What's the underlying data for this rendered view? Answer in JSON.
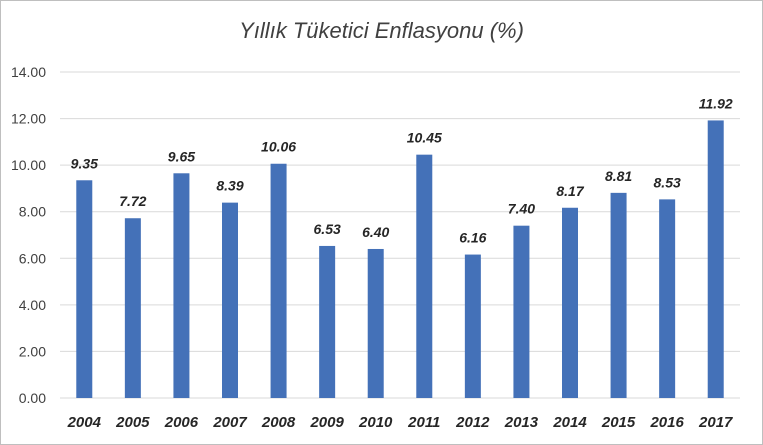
{
  "chart_data": {
    "type": "bar",
    "title": "Yıllık Tüketici Enflasyonu (%)",
    "categories": [
      "2004",
      "2005",
      "2006",
      "2007",
      "2008",
      "2009",
      "2010",
      "2011",
      "2012",
      "2013",
      "2014",
      "2015",
      "2016",
      "2017"
    ],
    "values": [
      9.35,
      7.72,
      9.65,
      8.39,
      10.06,
      6.53,
      6.4,
      10.45,
      6.16,
      7.4,
      8.17,
      8.81,
      8.53,
      11.92
    ],
    "value_labels": [
      "9.35",
      "7.72",
      "9.65",
      "8.39",
      "10.06",
      "6.53",
      "6.40",
      "10.45",
      "6.16",
      "7.40",
      "8.17",
      "8.81",
      "8.53",
      "11.92"
    ],
    "yticks": [
      "0.00",
      "2.00",
      "4.00",
      "6.00",
      "8.00",
      "10.00",
      "12.00",
      "14.00"
    ],
    "ylim": [
      0,
      14
    ],
    "grid": true,
    "bar_color": "#4471b8",
    "grid_color": "#d9d9d9"
  }
}
